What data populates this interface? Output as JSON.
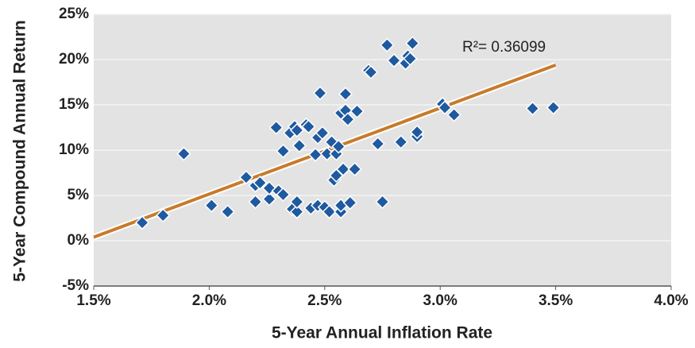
{
  "chart_data": {
    "type": "scatter",
    "x_label": "5-Year Annual Inflation Rate",
    "y_label": "5-Year Compound Annual Return",
    "annotation": "R²= 0.36099",
    "color": "#1f5aa0",
    "x": [
      1.71,
      1.8,
      1.89,
      2.01,
      2.08,
      2.16,
      2.2,
      2.22,
      2.2,
      2.26,
      2.26,
      2.3,
      2.32,
      2.29,
      2.32,
      2.35,
      2.37,
      2.38,
      2.39,
      2.42,
      2.43,
      2.36,
      2.38,
      2.38,
      2.44,
      2.47,
      2.46,
      2.47,
      2.49,
      2.48,
      2.5,
      2.52,
      2.51,
      2.53,
      2.54,
      2.55,
      2.55,
      2.56,
      2.58,
      2.57,
      2.57,
      2.57,
      2.59,
      2.6,
      2.59,
      2.61,
      2.63,
      2.64,
      2.69,
      2.7,
      2.73,
      2.75,
      2.77,
      2.8,
      2.83,
      2.85,
      2.86,
      2.87,
      2.88,
      2.9,
      2.9,
      3.01,
      3.02,
      3.06,
      3.4,
      3.49
    ],
    "values": [
      2.0,
      2.8,
      9.6,
      3.9,
      3.2,
      7.0,
      6.1,
      6.4,
      4.3,
      4.6,
      5.8,
      5.5,
      5.1,
      12.5,
      9.9,
      11.9,
      12.6,
      12.2,
      10.5,
      12.8,
      12.6,
      3.5,
      3.2,
      4.3,
      3.6,
      3.9,
      9.5,
      11.4,
      11.9,
      16.3,
      3.7,
      3.2,
      9.6,
      10.9,
      6.7,
      7.2,
      9.6,
      10.4,
      7.9,
      3.2,
      3.9,
      14.1,
      14.4,
      13.4,
      16.2,
      4.2,
      7.9,
      14.3,
      18.8,
      18.6,
      10.7,
      4.3,
      21.6,
      19.9,
      10.9,
      19.6,
      20.4,
      20.1,
      21.8,
      11.5,
      12.0,
      15.1,
      14.7,
      13.9,
      14.6,
      14.7
    ],
    "trendline": {
      "color": "#c87a2a",
      "x": [
        1.5,
        3.5
      ],
      "y": [
        0.4,
        19.4
      ]
    },
    "xlim": [
      1.5,
      4.0
    ],
    "xticks": [
      {
        "value": 1.5,
        "label": "1.5%"
      },
      {
        "value": 2.0,
        "label": "2.0%"
      },
      {
        "value": 2.5,
        "label": "2.5%"
      },
      {
        "value": 3.0,
        "label": "3.0%"
      },
      {
        "value": 3.5,
        "label": "3.5%"
      },
      {
        "value": 4.0,
        "label": "4.0%"
      }
    ],
    "ylim": [
      -5,
      25
    ],
    "yticks": [
      {
        "value": -5,
        "label": "-5%"
      },
      {
        "value": 0,
        "label": "0%"
      },
      {
        "value": 5,
        "label": "5%"
      },
      {
        "value": 10,
        "label": "10%"
      },
      {
        "value": 15,
        "label": "15%"
      },
      {
        "value": 20,
        "label": "20%"
      },
      {
        "value": 25,
        "label": "25%"
      }
    ],
    "grid": true
  }
}
